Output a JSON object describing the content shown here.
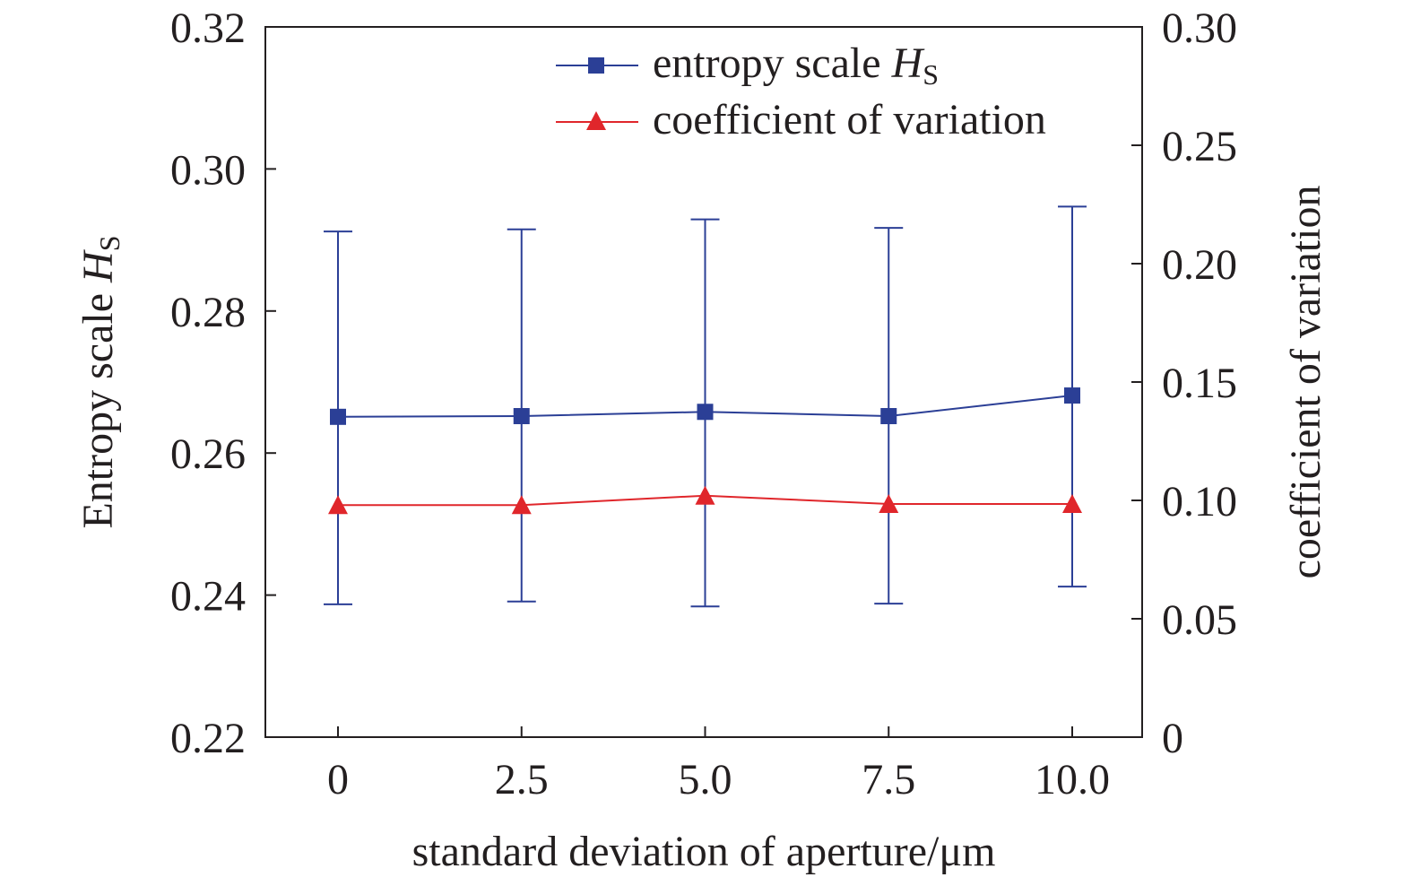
{
  "chart_data": {
    "type": "line",
    "xlabel": "standard deviation of aperture/μm",
    "ylabel": "Entropy scale ",
    "ylabel_var": "H",
    "ylabel_sub": "S",
    "y2label": "coefficient of variation",
    "x": [
      0,
      2.5,
      5.0,
      7.5,
      10.0
    ],
    "x_tick_labels": [
      "0",
      "2.5",
      "5.0",
      "7.5",
      "10.0"
    ],
    "xlim": [
      -2,
      10.9
    ],
    "ylim": [
      0.22,
      0.32
    ],
    "y_ticks": [
      0.22,
      0.24,
      0.26,
      0.28,
      0.3,
      0.32
    ],
    "y_tick_labels": [
      "0.22",
      "0.24",
      "0.26",
      "0.28",
      "0.30",
      "0.32"
    ],
    "y2lim": [
      0,
      0.3
    ],
    "y2_ticks": [
      0,
      0.05,
      0.1,
      0.15,
      0.2,
      0.25,
      0.3
    ],
    "y2_tick_labels": [
      "0",
      "0.05",
      "0.10",
      "0.15",
      "0.20",
      "0.25",
      "0.30"
    ],
    "grid": false,
    "legend_position": "top-right",
    "series": [
      {
        "name": "entropy scale ",
        "name_var": "H",
        "name_sub": "S",
        "axis": "left",
        "marker": "square",
        "color": "#2b3f96",
        "values": [
          0.2651,
          0.2652,
          0.2658,
          0.2652,
          0.2681
        ],
        "error_upper": [
          0.2912,
          0.2915,
          0.2929,
          0.2917,
          0.2947
        ],
        "error_lower": [
          0.2387,
          0.2391,
          0.2384,
          0.2388,
          0.2412
        ]
      },
      {
        "name": "coefficient of variation",
        "axis": "right",
        "marker": "triangle",
        "color": "#e0262b",
        "values": [
          0.098,
          0.098,
          0.102,
          0.0985,
          0.0985
        ]
      }
    ]
  }
}
